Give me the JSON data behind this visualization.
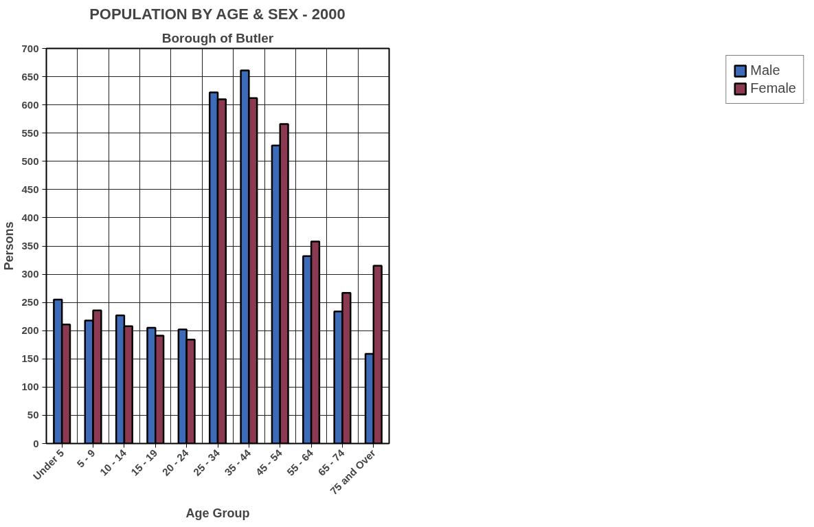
{
  "chart_data": {
    "type": "bar",
    "title": "POPULATION BY AGE & SEX - 2000",
    "subtitle": "Borough of Butler",
    "xlabel": "Age Group",
    "ylabel": "Persons",
    "categories": [
      "Under 5",
      "5 - 9",
      "10 - 14",
      "15 - 19",
      "20 - 24",
      "25 - 34",
      "35 - 44",
      "45 - 54",
      "55 - 64",
      "65 - 74",
      "75 and Over"
    ],
    "series": [
      {
        "name": "Male",
        "color": "#3d6bb8",
        "values": [
          255,
          218,
          227,
          205,
          202,
          622,
          661,
          528,
          332,
          234,
          159
        ]
      },
      {
        "name": "Female",
        "color": "#8b3a52",
        "values": [
          211,
          236,
          208,
          191,
          184,
          610,
          612,
          566,
          358,
          267,
          315
        ]
      }
    ],
    "ylim": [
      0,
      700
    ],
    "yticks": [
      0,
      50,
      100,
      150,
      200,
      250,
      300,
      350,
      400,
      450,
      500,
      550,
      600,
      650,
      700
    ],
    "grid": true,
    "legend": "right"
  }
}
